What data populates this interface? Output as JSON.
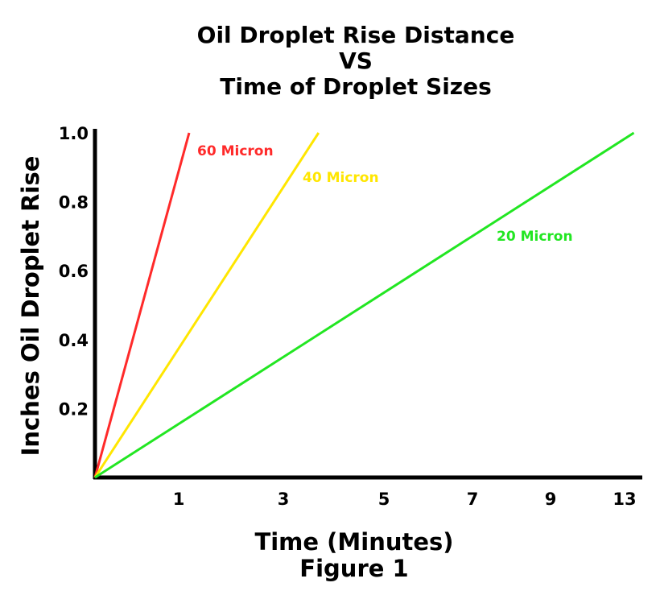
{
  "chart_data": {
    "type": "line",
    "title": [
      "Oil Droplet Rise Distance",
      "VS",
      "Time of Droplet Sizes"
    ],
    "xlabel": "Time (Minutes)",
    "ylabel": "Inches Oil Droplet Rise",
    "caption": "Figure 1",
    "x_tick_labels": [
      "1",
      "3",
      "5",
      "7",
      "9",
      "13"
    ],
    "y_tick_labels": [
      "1.0",
      "0.8",
      "0.6",
      "0.4",
      "0.2"
    ],
    "y_ticks": [
      1.0,
      0.8,
      0.6,
      0.4,
      0.2
    ],
    "ylim": [
      0,
      1.0
    ],
    "grid": false,
    "legend": "labels placed next to lines",
    "series": [
      {
        "name": "60 Micron",
        "color": "#ff2a2a",
        "x": [
          0,
          1.2
        ],
        "y": [
          0,
          1.0
        ]
      },
      {
        "name": "40 Micron",
        "color": "#ffe600",
        "x": [
          0,
          3.7
        ],
        "y": [
          0,
          1.0
        ]
      },
      {
        "name": "20 Micron",
        "color": "#22e622",
        "x": [
          0,
          13.5
        ],
        "y": [
          0,
          1.0
        ]
      }
    ]
  }
}
